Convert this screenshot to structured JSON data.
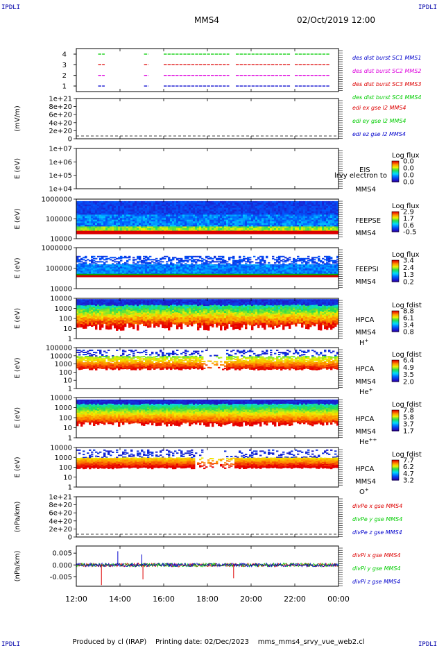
{
  "header": {
    "title": "MMS4",
    "datetime": "02/Oct/2019 12:00",
    "corner_tl": "IPDLI",
    "corner_tr": "IPDLI",
    "corner_bl": "IPDLI",
    "corner_br": "IPDLI"
  },
  "footer": {
    "produced_by": "Produced by cl (IRAP)",
    "printing_date": "Printing date: 02/Dec/2023",
    "script_name": "mms_mms4_srvy_vue_web2.cl"
  },
  "colors": {
    "MMS1": "#0000cc",
    "MMS2": "#dd00dd",
    "MMS3": "#dd0000",
    "MMS4": "#00cc00",
    "x_component": "#dd0000",
    "y_component": "#00cc00",
    "z_component": "#0000cc"
  },
  "chart_data": [
    {
      "id": "burst",
      "type": "scatter",
      "xlabel": "",
      "ylabel": "",
      "ylim": [
        0.5,
        4.5
      ],
      "yticks": [
        "1",
        "2",
        "3",
        "4"
      ],
      "legend": [
        "des dist burst SC1 MMS1",
        "des dist burst SC2 MMS2",
        "des dist burst SC3 MMS3",
        "des dist burst SC4 MMS4"
      ],
      "series": [
        {
          "level": 1,
          "color": "#0000cc",
          "intervals": [
            [
              13.0,
              13.3
            ],
            [
              15.1,
              15.3
            ],
            [
              16.0,
              19.0
            ],
            [
              19.3,
              21.8
            ],
            [
              22.0,
              23.6
            ]
          ]
        },
        {
          "level": 2,
          "color": "#dd00dd",
          "intervals": [
            [
              13.0,
              13.3
            ],
            [
              15.1,
              15.3
            ],
            [
              16.0,
              19.0
            ],
            [
              19.3,
              21.8
            ],
            [
              22.0,
              23.6
            ]
          ]
        },
        {
          "level": 3,
          "color": "#dd0000",
          "intervals": [
            [
              13.0,
              13.3
            ],
            [
              15.1,
              15.3
            ],
            [
              16.0,
              19.0
            ],
            [
              19.3,
              21.8
            ],
            [
              22.0,
              23.6
            ]
          ]
        },
        {
          "level": 4,
          "color": "#00cc00",
          "intervals": [
            [
              13.0,
              13.3
            ],
            [
              15.1,
              15.3
            ],
            [
              16.0,
              19.0
            ],
            [
              19.3,
              21.8
            ],
            [
              22.0,
              23.6
            ]
          ]
        }
      ]
    },
    {
      "id": "edi",
      "type": "line",
      "ylabel": "(mV/m)",
      "yticks": [
        "0",
        "2e+20",
        "4e+20",
        "6e+20",
        "8e+20",
        "1e+21"
      ],
      "legend": [
        "edi ex gse l2 MMS4",
        "edi ey gse l2 MMS4",
        "edi ez gse l2 MMS4"
      ]
    },
    {
      "id": "eis",
      "type": "heatmap",
      "ylabel": "E (eV)",
      "yticks": [
        "1e+04",
        "1e+05",
        "1e+06",
        "1e+07"
      ],
      "label": "EIS",
      "overlay": "lrvy electron to",
      "probe": "MMS4",
      "cbar_title": "Log flux",
      "cbar_ticks": [
        "0.0",
        "0.0",
        "0.0",
        "0.0"
      ]
    },
    {
      "id": "feepse",
      "type": "heatmap",
      "ylabel": "E (eV)",
      "yticks": [
        "10000",
        "100000",
        "1000000"
      ],
      "label": "FEEPSE",
      "probe": "MMS4",
      "cbar_title": "Log flux",
      "cbar_ticks": [
        "2.9",
        "1.7",
        "0.6",
        "-0.5"
      ]
    },
    {
      "id": "feepsi",
      "type": "heatmap",
      "ylabel": "E (eV)",
      "yticks": [
        "10000",
        "100000",
        "1000000"
      ],
      "label": "FEEPSI",
      "probe": "MMS4",
      "cbar_title": "Log flux",
      "cbar_ticks": [
        "3.4",
        "2.4",
        "1.3",
        "0.2"
      ]
    },
    {
      "id": "hpca_h",
      "type": "heatmap",
      "ylabel": "E (eV)",
      "yticks": [
        "1",
        "10",
        "100",
        "1000",
        "10000"
      ],
      "label": "HPCA",
      "probe": "MMS4",
      "species": "H",
      "species_sup": "+",
      "cbar_title": "Log fdist",
      "cbar_ticks": [
        "8.8",
        "6.1",
        "3.4",
        "0.8"
      ]
    },
    {
      "id": "hpca_he",
      "type": "heatmap",
      "ylabel": "E (eV)",
      "yticks": [
        "1",
        "10",
        "100",
        "1000",
        "10000",
        "100000"
      ],
      "label": "HPCA",
      "probe": "MMS4",
      "species": "He",
      "species_sup": "+",
      "cbar_title": "Log fdist",
      "cbar_ticks": [
        "6.4",
        "4.9",
        "3.5",
        "2.0"
      ]
    },
    {
      "id": "hpca_hepp",
      "type": "heatmap",
      "ylabel": "E (eV)",
      "yticks": [
        "1",
        "10",
        "100",
        "1000",
        "10000"
      ],
      "label": "HPCA",
      "probe": "MMS4",
      "species": "He",
      "species_sup": "++",
      "cbar_title": "Log fdist",
      "cbar_ticks": [
        "7.8",
        "5.8",
        "3.7",
        "1.7"
      ]
    },
    {
      "id": "hpca_o",
      "type": "heatmap",
      "ylabel": "E (eV)",
      "yticks": [
        "1",
        "10",
        "100",
        "1000",
        "10000"
      ],
      "label": "HPCA",
      "probe": "MMS4",
      "species": "O",
      "species_sup": "+",
      "cbar_title": "Log fdist",
      "cbar_ticks": [
        "7.7",
        "6.2",
        "4.7",
        "3.2"
      ]
    },
    {
      "id": "divpe",
      "type": "line",
      "ylabel": "(nPa/km)",
      "yticks": [
        "0",
        "2e+20",
        "4e+20",
        "6e+20",
        "8e+20",
        "1e+21"
      ],
      "legend": [
        "divPe x gse MMS4",
        "divPe y gse MMS4",
        "divPe z gse MMS4"
      ]
    },
    {
      "id": "divpi",
      "type": "line",
      "ylabel": "(nPa/km)",
      "ylim": [
        -0.009,
        0.008
      ],
      "yticks": [
        "-0.005",
        "0.000",
        "0.005"
      ],
      "legend": [
        "divPi x gse MMS4",
        "divPi y gse MMS4",
        "divPi z gse MMS4"
      ],
      "spikes": [
        {
          "t": 13.15,
          "v": -0.0085,
          "color": "#dd0000"
        },
        {
          "t": 13.9,
          "v": 0.0058,
          "color": "#0000cc"
        },
        {
          "t": 15.0,
          "v": 0.0044,
          "color": "#0000cc"
        },
        {
          "t": 15.05,
          "v": -0.0061,
          "color": "#dd0000"
        },
        {
          "t": 19.2,
          "v": -0.0056,
          "color": "#dd0000"
        }
      ]
    }
  ],
  "time_axis": {
    "range": [
      12,
      24
    ],
    "tick_labels": [
      "12:00",
      "14:00",
      "16:00",
      "18:00",
      "20:00",
      "22:00",
      "00:00"
    ],
    "tick_values": [
      12,
      14,
      16,
      18,
      20,
      22,
      24
    ]
  }
}
